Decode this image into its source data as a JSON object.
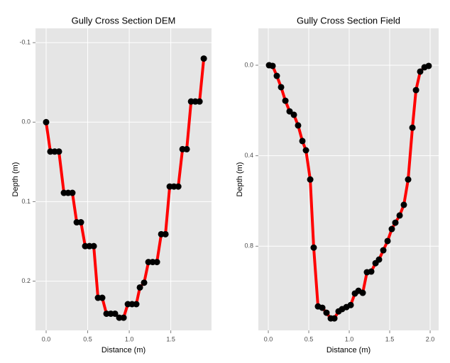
{
  "chart_data": [
    {
      "type": "line",
      "title": "Gully Cross Section DEM",
      "x_label": "Distance (m)",
      "y_label": "Depth (m)",
      "x": [
        0,
        0.051,
        0.103,
        0.154,
        0.214,
        0.265,
        0.316,
        0.368,
        0.419,
        0.47,
        0.521,
        0.573,
        0.624,
        0.675,
        0.726,
        0.778,
        0.829,
        0.88,
        0.932,
        0.983,
        1.034,
        1.085,
        1.128,
        1.179,
        1.231,
        1.282,
        1.333,
        1.385,
        1.436,
        1.487,
        1.538,
        1.59,
        1.641,
        1.692,
        1.744,
        1.795,
        1.846,
        1.897
      ],
      "values": [
        0,
        0.037,
        0.037,
        0.037,
        0.089,
        0.089,
        0.089,
        0.126,
        0.126,
        0.156,
        0.156,
        0.156,
        0.221,
        0.221,
        0.241,
        0.241,
        0.241,
        0.246,
        0.246,
        0.229,
        0.229,
        0.229,
        0.208,
        0.202,
        0.176,
        0.176,
        0.176,
        0.141,
        0.141,
        0.081,
        0.081,
        0.081,
        0.034,
        0.034,
        -0.026,
        -0.026,
        -0.026,
        -0.08
      ],
      "color": "#ff0000",
      "marker_color": "#000000",
      "xlim": [
        -0.128,
        1.99
      ],
      "ylim": [
        -0.118,
        0.262
      ],
      "y_reversed": true,
      "grid": true,
      "xticks": [
        {
          "value": 0,
          "label": "0.0"
        },
        0.5,
        {
          "value": 1,
          "label": "1.0"
        },
        1.5
      ],
      "yticks": [
        -0.1,
        {
          "value": 0,
          "label": "0.0"
        },
        0.1,
        0.2
      ]
    },
    {
      "type": "line",
      "title": "Gully Cross Section Field",
      "x_label": "Distance (m)",
      "y_label": "Depth (m)",
      "x": [
        0.009,
        0.053,
        0.105,
        0.158,
        0.211,
        0.263,
        0.316,
        0.368,
        0.421,
        0.465,
        0.518,
        0.561,
        0.614,
        0.667,
        0.719,
        0.772,
        0.816,
        0.868,
        0.912,
        0.965,
        1.018,
        1.07,
        1.114,
        1.167,
        1.219,
        1.272,
        1.325,
        1.368,
        1.421,
        1.474,
        1.526,
        1.57,
        1.623,
        1.675,
        1.728,
        1.781,
        1.825,
        1.877,
        1.93,
        1.982
      ],
      "values": [
        0,
        0.003,
        0.047,
        0.097,
        0.157,
        0.204,
        0.219,
        0.266,
        0.335,
        0.376,
        0.505,
        0.806,
        1.066,
        1.072,
        1.094,
        1.119,
        1.119,
        1.088,
        1.078,
        1.069,
        1.06,
        1.009,
        0.997,
        1.006,
        0.915,
        0.912,
        0.875,
        0.859,
        0.818,
        0.777,
        0.724,
        0.696,
        0.664,
        0.617,
        0.505,
        0.276,
        0.11,
        0.028,
        0.009,
        0.003
      ],
      "color": "#ff0000",
      "marker_color": "#000000",
      "xlim": [
        -0.123,
        2.105
      ],
      "ylim": [
        -0.163,
        1.172
      ],
      "y_reversed": true,
      "grid": true,
      "xticks": [
        {
          "value": 0,
          "label": "0.0"
        },
        0.5,
        {
          "value": 1,
          "label": "1.0"
        },
        1.5,
        {
          "value": 2,
          "label": "2.0"
        }
      ],
      "yticks": [
        {
          "value": 0,
          "label": "0.0"
        },
        0.4,
        0.8
      ]
    }
  ]
}
